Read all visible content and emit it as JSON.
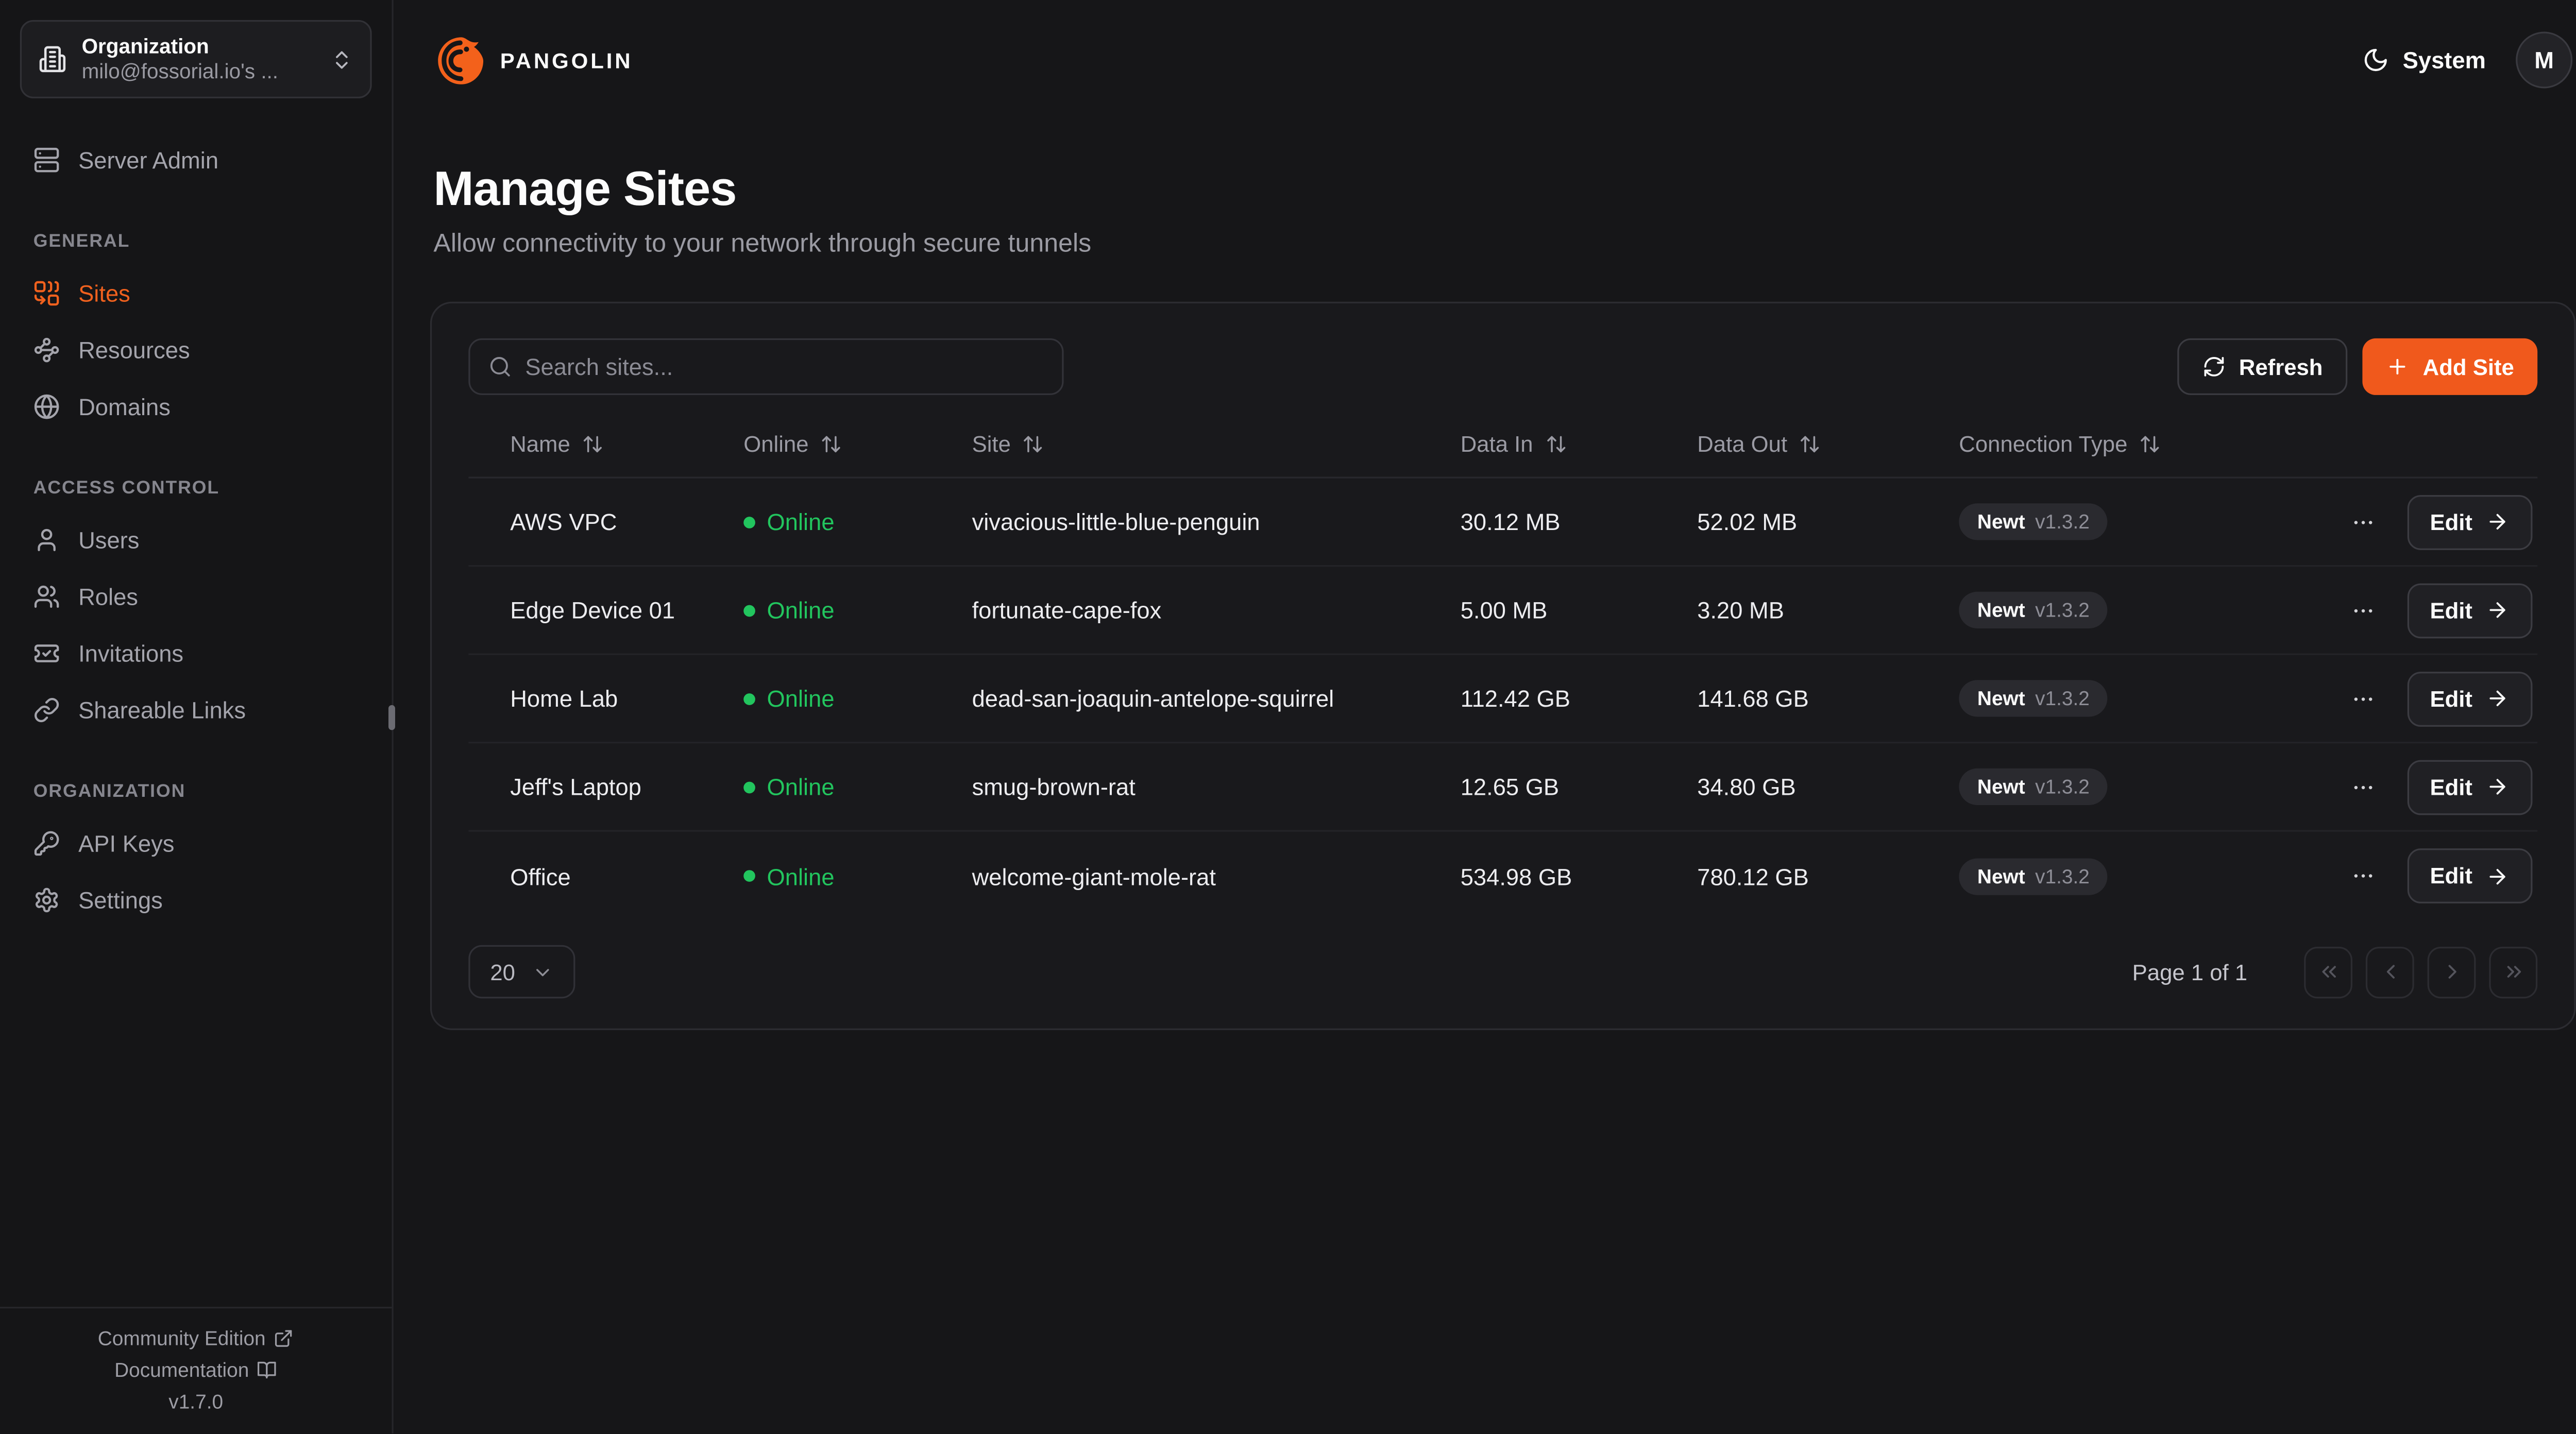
{
  "org_selector": {
    "title": "Organization",
    "subtitle": "milo@fossorial.io's ...",
    "icon": "building-2"
  },
  "topbar": {
    "brand": "PANGOLIN",
    "theme": {
      "icon": "moon",
      "label": "System"
    },
    "avatar_initial": "M"
  },
  "sidebar": {
    "top_item": {
      "label": "Server Admin",
      "icon": "server"
    },
    "sections": [
      {
        "label": "GENERAL",
        "items": [
          {
            "label": "Sites",
            "icon": "combine",
            "active": true
          },
          {
            "label": "Resources",
            "icon": "waypoints",
            "active": false
          },
          {
            "label": "Domains",
            "icon": "globe",
            "active": false
          }
        ]
      },
      {
        "label": "ACCESS CONTROL",
        "items": [
          {
            "label": "Users",
            "icon": "user",
            "active": false
          },
          {
            "label": "Roles",
            "icon": "users",
            "active": false
          },
          {
            "label": "Invitations",
            "icon": "ticket-check",
            "active": false
          },
          {
            "label": "Shareable Links",
            "icon": "link",
            "active": false
          }
        ]
      },
      {
        "label": "ORGANIZATION",
        "items": [
          {
            "label": "API Keys",
            "icon": "key-round",
            "active": false
          },
          {
            "label": "Settings",
            "icon": "settings",
            "active": false
          }
        ]
      }
    ],
    "footer": {
      "community_edition": "Community Edition",
      "documentation": "Documentation",
      "version": "v1.7.0"
    }
  },
  "page": {
    "title": "Manage Sites",
    "subtitle": "Allow connectivity to your network through secure tunnels"
  },
  "toolbar": {
    "search_placeholder": "Search sites...",
    "refresh_label": "Refresh",
    "add_site_label": "Add Site"
  },
  "table": {
    "columns": [
      "Name",
      "Online",
      "Site",
      "Data In",
      "Data Out",
      "Connection Type"
    ],
    "rows": [
      {
        "name": "AWS VPC",
        "status": "Online",
        "site": "vivacious-little-blue-penguin",
        "data_in": "30.12 MB",
        "data_out": "52.02 MB",
        "conn_type": "Newt",
        "conn_version": "v1.3.2",
        "edit": "Edit"
      },
      {
        "name": "Edge Device 01",
        "status": "Online",
        "site": "fortunate-cape-fox",
        "data_in": "5.00 MB",
        "data_out": "3.20 MB",
        "conn_type": "Newt",
        "conn_version": "v1.3.2",
        "edit": "Edit"
      },
      {
        "name": "Home Lab",
        "status": "Online",
        "site": "dead-san-joaquin-antelope-squirrel",
        "data_in": "112.42 GB",
        "data_out": "141.68 GB",
        "conn_type": "Newt",
        "conn_version": "v1.3.2",
        "edit": "Edit"
      },
      {
        "name": "Jeff's Laptop",
        "status": "Online",
        "site": "smug-brown-rat",
        "data_in": "12.65 GB",
        "data_out": "34.80 GB",
        "conn_type": "Newt",
        "conn_version": "v1.3.2",
        "edit": "Edit"
      },
      {
        "name": "Office",
        "status": "Online",
        "site": "welcome-giant-mole-rat",
        "data_in": "534.98 GB",
        "data_out": "780.12 GB",
        "conn_type": "Newt",
        "conn_version": "v1.3.2",
        "edit": "Edit"
      }
    ]
  },
  "pagination": {
    "page_size": "20",
    "status": "Page 1 of 1"
  },
  "colors": {
    "accent_orange": "#f0591c",
    "online_green": "#22c55e"
  }
}
